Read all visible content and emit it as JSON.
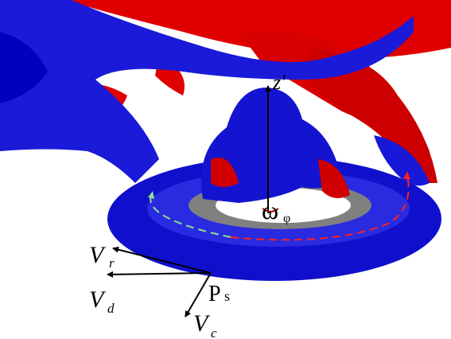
{
  "labels": {
    "z_axis": "z'",
    "omega": "ω",
    "omega_sub": "φ",
    "vr": "V",
    "vr_sub": "r",
    "vd": "V",
    "vd_sub": "d",
    "ps": "P",
    "ps_sub": "s",
    "vc": "V",
    "vc_sub": "c"
  }
}
